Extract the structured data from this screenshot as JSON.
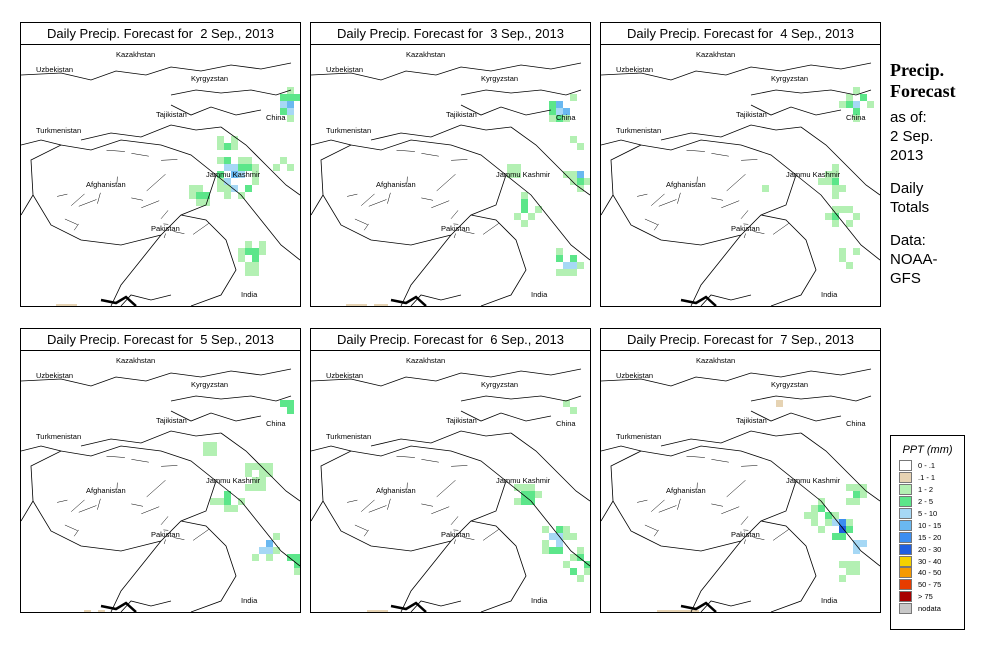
{
  "panels": [
    {
      "title": "Daily Precip. Forecast for  2 Sep., 2013",
      "variant": 0
    },
    {
      "title": "Daily Precip. Forecast for  3 Sep., 2013",
      "variant": 1
    },
    {
      "title": "Daily Precip. Forecast for  4 Sep., 2013",
      "variant": 2
    },
    {
      "title": "Daily Precip. Forecast for  5 Sep., 2013",
      "variant": 3
    },
    {
      "title": "Daily Precip. Forecast for  6 Sep., 2013",
      "variant": 4
    },
    {
      "title": "Daily Precip. Forecast for  7 Sep., 2013",
      "variant": 5
    }
  ],
  "map_labels": {
    "kazakhstan": "Kazakhstan",
    "uzbekistan": "Uzbekistan",
    "kyrgyzstan": "Kyrgyzstan",
    "tajikistan": "Tajikistan",
    "china": "China",
    "turkmenistan": "Turkmenistan",
    "afghanistan": "Afghanistan",
    "jammu_kashmir": "Jammu Kashmir",
    "pakistan": "Pakistan",
    "india": "India"
  },
  "side_info": {
    "title_line1": "Precip.",
    "title_line2": "Forecast",
    "as_of_label": "as of:",
    "date_line1": "2 Sep.",
    "date_line2": "2013",
    "totals_line1": "Daily",
    "totals_line2": "Totals",
    "data_label": "Data:",
    "source_line1": "NOAA-",
    "source_line2": "GFS"
  },
  "legend": {
    "title": "PPT (mm)",
    "items": [
      {
        "label": "0 - .1",
        "color": "#ffffff"
      },
      {
        "label": ".1 - 1",
        "color": "#e6d3b3"
      },
      {
        "label": "1 - 2",
        "color": "#b3f0b3"
      },
      {
        "label": "2 - 5",
        "color": "#5ce68a"
      },
      {
        "label": "5 - 10",
        "color": "#a6d8f5"
      },
      {
        "label": "10 - 15",
        "color": "#6ab8f0"
      },
      {
        "label": "15 - 20",
        "color": "#3c8ef0"
      },
      {
        "label": "20 - 30",
        "color": "#1f5fe0"
      },
      {
        "label": "30 - 40",
        "color": "#f5d200"
      },
      {
        "label": "40 - 50",
        "color": "#f59a00"
      },
      {
        "label": "50 - 75",
        "color": "#e63c00"
      },
      {
        "label": "> 75",
        "color": "#a80000"
      },
      {
        "label": "nodata",
        "color": "#c8c8c8"
      }
    ]
  }
}
